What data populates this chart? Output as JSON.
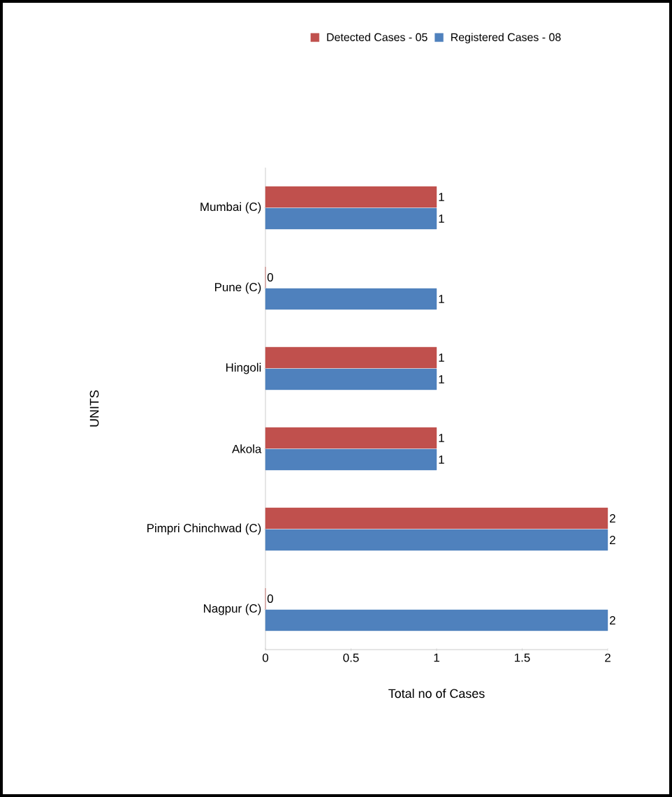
{
  "chart_data": {
    "type": "bar",
    "orientation": "horizontal",
    "xlabel": "Total no of Cases",
    "ylabel": "UNITS",
    "categories": [
      "Mumbai (C)",
      "Pune (C)",
      "Hingoli",
      "Akola",
      "Pimpri Chinchwad (C)",
      "Nagpur (C)"
    ],
    "series": [
      {
        "name": "Detected Cases - 05",
        "color": "#c0504d",
        "values": [
          1,
          0,
          1,
          1,
          2,
          0
        ]
      },
      {
        "name": "Registered Cases - 08",
        "color": "#4f81bd",
        "values": [
          1,
          1,
          1,
          1,
          2,
          2
        ]
      }
    ],
    "xlim": [
      0,
      2
    ],
    "xticks": [
      0,
      0.5,
      1,
      1.5,
      2
    ],
    "data_labels": true,
    "legend": "top",
    "grid": false
  }
}
